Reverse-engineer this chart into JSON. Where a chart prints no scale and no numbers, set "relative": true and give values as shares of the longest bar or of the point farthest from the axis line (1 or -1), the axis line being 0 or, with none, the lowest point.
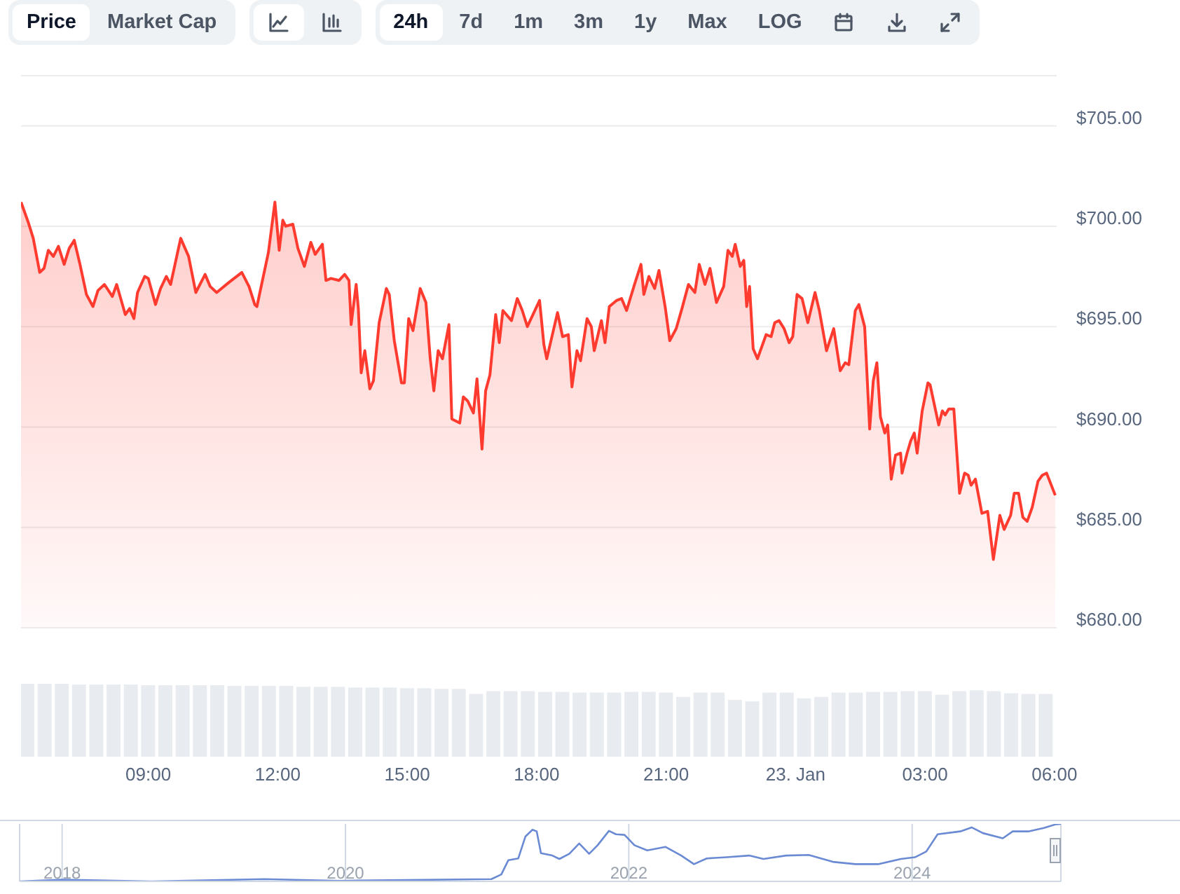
{
  "chart_data": [
    {
      "type": "area",
      "annotations": [
        "Price",
        "Market Cap",
        "24h",
        "7d",
        "1m",
        "3m",
        "1y",
        "Max",
        "LOG"
      ],
      "xlim": [
        "--01-22T06:03",
        "--01-23T06:03"
      ],
      "ylim": [
        680,
        707.5
      ],
      "yticks": [
        {
          "value": 680,
          "label": "$680.00"
        },
        {
          "value": 685,
          "label": "$685.00"
        },
        {
          "value": 690,
          "label": "$690.00"
        },
        {
          "value": 695,
          "label": "$695.00"
        },
        {
          "value": 700,
          "label": "$700.00"
        },
        {
          "value": 705,
          "label": "$705.00"
        }
      ],
      "grid": "y",
      "tick_labels": "y",
      "x": [
        "--01-22T06:03",
        "--01-22T06:13",
        "--01-22T06:20",
        "--01-22T06:29",
        "--01-22T06:35",
        "--01-22T06:41",
        "--01-22T06:48",
        "--01-22T06:55",
        "--01-22T07:03",
        "--01-22T07:10",
        "--01-22T07:17",
        "--01-22T07:25",
        "--01-22T07:34",
        "--01-22T07:43",
        "--01-22T07:50",
        "--01-22T07:59",
        "--01-22T08:10",
        "--01-22T08:16",
        "--01-22T08:28",
        "--01-22T08:34",
        "--01-22T08:40",
        "--01-22T08:45",
        "--01-22T08:55",
        "--01-22T09:00",
        "--01-22T09:10",
        "--01-22T09:17",
        "--01-22T09:25",
        "--01-22T09:31",
        "--01-22T09:45",
        "--01-22T09:56",
        "--01-22T10:06",
        "--01-22T10:19",
        "--01-22T10:26",
        "--01-22T10:35",
        "--01-22T10:52",
        "--01-22T11:10",
        "--01-22T11:20",
        "--01-22T11:28",
        "--01-22T11:31",
        "--01-22T11:47",
        "--01-22T11:56",
        "--01-22T12:02",
        "--01-22T12:07",
        "--01-22T12:11",
        "--01-22T12:21",
        "--01-22T12:28",
        "--01-22T12:37",
        "--01-22T12:46",
        "--01-22T12:52",
        "--01-22T13:02",
        "--01-22T13:07",
        "--01-22T13:14",
        "--01-22T13:25",
        "--01-22T13:33",
        "--01-22T13:39",
        "--01-22T13:42",
        "--01-22T13:49",
        "--01-22T13:52",
        "--01-22T13:56",
        "--01-22T14:01",
        "--01-22T14:08",
        "--01-22T14:13",
        "--01-22T14:21",
        "--01-22T14:31",
        "--01-22T14:35",
        "--01-22T14:42",
        "--01-22T14:52",
        "--01-22T14:56",
        "--01-22T15:02",
        "--01-22T15:08",
        "--01-22T15:18",
        "--01-22T15:26",
        "--01-22T15:32",
        "--01-22T15:37",
        "--01-22T15:43",
        "--01-22T15:49",
        "--01-22T15:58",
        "--01-22T16:02",
        "--01-22T16:13",
        "--01-22T16:18",
        "--01-22T16:24",
        "--01-22T16:32",
        "--01-22T16:37",
        "--01-22T16:44",
        "--01-22T16:49",
        "--01-22T16:55",
        "--01-22T17:03",
        "--01-22T17:08",
        "--01-22T17:13",
        "--01-22T17:25",
        "--01-22T17:33",
        "--01-22T17:40",
        "--01-22T17:47",
        "--01-22T18:04",
        "--01-22T18:10",
        "--01-22T18:14",
        "--01-22T18:29",
        "--01-22T18:36",
        "--01-22T18:44",
        "--01-22T18:49",
        "--01-22T18:56",
        "--01-22T19:01",
        "--01-22T19:10",
        "--01-22T19:16",
        "--01-22T19:20",
        "--01-22T19:30",
        "--01-22T19:35",
        "--01-22T19:41",
        "--01-22T19:51",
        "--01-22T19:58",
        "--01-22T20:05",
        "--01-22T20:16",
        "--01-22T20:25",
        "--01-22T20:29",
        "--01-22T20:36",
        "--01-22T20:44",
        "--01-22T20:50",
        "--01-22T20:59",
        "--01-22T21:05",
        "--01-22T21:14",
        "--01-22T21:22",
        "--01-22T21:31",
        "--01-22T21:40",
        "--01-22T21:46",
        "--01-22T21:54",
        "--01-22T22:01",
        "--01-22T22:10",
        "--01-22T22:20",
        "--01-22T22:26",
        "--01-22T22:32",
        "--01-22T22:36",
        "--01-22T22:43",
        "--01-22T22:48",
        "--01-22T22:52",
        "--01-22T22:56",
        "--01-22T23:01",
        "--01-22T23:07",
        "--01-22T23:19",
        "--01-22T23:26",
        "--01-22T23:31",
        "--01-22T23:37",
        "--01-22T23:44",
        "--01-22T23:51",
        "--01-22T23:56",
        "--01-23T00:02",
        "--01-23T00:09",
        "--01-23T00:17",
        "--01-23T00:27",
        "--01-23T00:33",
        "--01-23T00:43",
        "--01-23T00:53",
        "--01-23T01:02",
        "--01-23T01:09",
        "--01-23T01:14",
        "--01-23T01:23",
        "--01-23T01:28",
        "--01-23T01:36",
        "--01-23T01:43",
        "--01-23T01:48",
        "--01-23T01:53",
        "--01-23T01:58",
        "--01-23T02:04",
        "--01-23T02:08",
        "--01-23T02:13",
        "--01-23T02:19",
        "--01-23T02:26",
        "--01-23T02:28",
        "--01-23T02:35",
        "--01-23T02:40",
        "--01-23T02:45",
        "--01-23T02:49",
        "--01-23T02:56",
        "--01-23T03:04",
        "--01-23T03:07",
        "--01-23T03:19",
        "--01-23T03:24",
        "--01-23T03:28",
        "--01-23T03:33",
        "--01-23T03:40",
        "--01-23T03:48",
        "--01-23T03:55",
        "--01-23T04:00",
        "--01-23T04:04",
        "--01-23T04:10",
        "--01-23T04:19",
        "--01-23T04:27",
        "--01-23T04:35",
        "--01-23T04:44",
        "--01-23T04:50",
        "--01-23T04:59",
        "--01-23T05:04",
        "--01-23T05:10",
        "--01-23T05:16",
        "--01-23T05:22",
        "--01-23T05:29",
        "--01-23T05:37",
        "--01-23T05:43",
        "--01-23T05:49",
        "--01-23T06:01"
      ],
      "series": [
        {
          "color": "#ff3b30",
          "values": [
            701.2,
            700.2,
            699.4,
            697.7,
            697.9,
            698.8,
            698.5,
            699.0,
            698.1,
            698.9,
            699.3,
            698.1,
            696.6,
            696.0,
            696.8,
            697.1,
            696.5,
            697.1,
            695.6,
            695.9,
            695.4,
            696.7,
            697.5,
            697.4,
            696.1,
            696.9,
            697.5,
            697.1,
            699.4,
            698.5,
            696.7,
            697.6,
            697.0,
            696.7,
            697.2,
            697.7,
            697.0,
            696.1,
            696.0,
            698.7,
            701.2,
            698.8,
            700.3,
            700.0,
            700.1,
            698.9,
            698.0,
            699.2,
            698.6,
            699.1,
            697.3,
            697.4,
            697.3,
            697.6,
            697.3,
            695.1,
            697.1,
            695.9,
            692.7,
            693.8,
            691.9,
            692.3,
            695.2,
            696.9,
            696.6,
            694.3,
            692.2,
            692.2,
            695.4,
            694.8,
            696.9,
            696.2,
            693.4,
            691.8,
            693.8,
            693.4,
            695.1,
            690.4,
            690.2,
            691.5,
            691.3,
            690.7,
            692.4,
            688.9,
            691.8,
            692.6,
            695.6,
            694.2,
            695.8,
            695.3,
            696.4,
            695.8,
            695.0,
            696.3,
            694.1,
            693.4,
            695.7,
            694.5,
            694.6,
            692.0,
            693.8,
            693.3,
            695.4,
            695.0,
            693.8,
            695.3,
            694.2,
            696.0,
            696.3,
            696.4,
            695.8,
            697.1,
            698.1,
            696.6,
            697.5,
            696.9,
            697.8,
            695.9,
            694.3,
            694.9,
            695.9,
            697.1,
            696.7,
            698.1,
            697.1,
            697.9,
            696.2,
            697.0,
            698.8,
            698.5,
            699.1,
            698.0,
            698.3,
            696.0,
            697.0,
            693.9,
            693.4,
            694.6,
            694.5,
            695.2,
            695.3,
            694.9,
            694.2,
            694.5,
            696.6,
            696.4,
            695.2,
            696.7,
            695.8,
            693.8,
            694.9,
            692.8,
            693.2,
            693.1,
            695.8,
            696.1,
            695.0,
            689.9,
            692.3,
            693.2,
            690.5,
            689.7,
            690.1,
            687.4,
            688.6,
            688.7,
            687.7,
            688.7,
            689.3,
            689.7,
            688.7,
            690.8,
            692.2,
            692.1,
            690.1,
            690.8,
            690.6,
            690.9,
            690.9,
            686.7,
            687.7,
            687.6,
            687.1,
            687.4,
            685.7,
            685.8,
            683.4,
            685.6,
            684.9,
            685.6,
            686.7,
            686.7,
            685.5,
            685.3,
            686.0,
            687.3,
            687.6,
            687.7,
            686.6
          ]
        }
      ]
    },
    {
      "type": "bar",
      "relative": true,
      "color": "#e8ecf1",
      "tick_labels": "x",
      "xlim": [
        "--01-22T06:03",
        "--01-23T06:03"
      ],
      "xticks": [
        {
          "value": "--01-22T09:00",
          "label": "09:00"
        },
        {
          "value": "--01-22T12:00",
          "label": "12:00"
        },
        {
          "value": "--01-22T15:00",
          "label": "15:00"
        },
        {
          "value": "--01-22T18:00",
          "label": "18:00"
        },
        {
          "value": "--01-22T21:00",
          "label": "21:00"
        },
        {
          "value": "--01-23T00:00",
          "label": "23. Jan"
        },
        {
          "value": "--01-23T03:00",
          "label": "03:00"
        },
        {
          "value": "--01-23T06:00",
          "label": "06:00"
        }
      ],
      "x": [
        "--01-22T06:12",
        "--01-22T06:36",
        "--01-22T07:00",
        "--01-22T07:24",
        "--01-22T07:48",
        "--01-22T08:12",
        "--01-22T08:36",
        "--01-22T09:00",
        "--01-22T09:24",
        "--01-22T09:48",
        "--01-22T10:12",
        "--01-22T10:36",
        "--01-22T11:00",
        "--01-22T11:24",
        "--01-22T11:48",
        "--01-22T12:12",
        "--01-22T12:36",
        "--01-22T13:00",
        "--01-22T13:24",
        "--01-22T13:48",
        "--01-22T14:12",
        "--01-22T14:36",
        "--01-22T15:00",
        "--01-22T15:24",
        "--01-22T15:48",
        "--01-22T16:12",
        "--01-22T16:36",
        "--01-22T17:00",
        "--01-22T17:24",
        "--01-22T17:48",
        "--01-22T18:12",
        "--01-22T18:36",
        "--01-22T19:00",
        "--01-22T19:24",
        "--01-22T19:48",
        "--01-22T20:12",
        "--01-22T20:36",
        "--01-22T21:00",
        "--01-22T21:24",
        "--01-22T21:48",
        "--01-22T22:12",
        "--01-22T22:36",
        "--01-22T23:00",
        "--01-22T23:24",
        "--01-22T23:48",
        "--01-23T00:12",
        "--01-23T00:36",
        "--01-23T01:00",
        "--01-23T01:24",
        "--01-23T01:48",
        "--01-23T02:12",
        "--01-23T02:36",
        "--01-23T03:00",
        "--01-23T03:24",
        "--01-23T03:48",
        "--01-23T04:12",
        "--01-23T04:36",
        "--01-23T05:00",
        "--01-23T05:24",
        "--01-23T05:48"
      ],
      "values": [
        1.0,
        1.0,
        1.0,
        0.99,
        0.99,
        0.99,
        0.99,
        0.98,
        0.98,
        0.98,
        0.98,
        0.98,
        0.97,
        0.97,
        0.97,
        0.97,
        0.96,
        0.96,
        0.96,
        0.95,
        0.95,
        0.95,
        0.94,
        0.94,
        0.93,
        0.93,
        0.86,
        0.9,
        0.9,
        0.9,
        0.89,
        0.89,
        0.88,
        0.88,
        0.88,
        0.89,
        0.89,
        0.88,
        0.82,
        0.88,
        0.88,
        0.78,
        0.76,
        0.88,
        0.88,
        0.8,
        0.82,
        0.88,
        0.88,
        0.89,
        0.89,
        0.9,
        0.9,
        0.85,
        0.9,
        0.91,
        0.9,
        0.87,
        0.86,
        0.86
      ]
    },
    {
      "type": "line",
      "relative": true,
      "color": "#6a8ad4",
      "grid": "x",
      "xlim": [
        2017.7,
        2025.05
      ],
      "xticks": [
        2018,
        2020,
        2022,
        2024
      ],
      "tick_labels": "x",
      "x": [
        2017.7,
        2018.0,
        2018.63,
        2019.43,
        2019.96,
        2021.03,
        2021.1,
        2021.15,
        2021.22,
        2021.27,
        2021.32,
        2021.35,
        2021.38,
        2021.46,
        2021.51,
        2021.58,
        2021.65,
        2021.72,
        2021.78,
        2021.86,
        2021.91,
        2021.97,
        2022.04,
        2022.13,
        2022.26,
        2022.37,
        2022.46,
        2022.55,
        2022.69,
        2022.85,
        2022.95,
        2023.11,
        2023.27,
        2023.44,
        2023.6,
        2023.76,
        2023.92,
        2024.02,
        2024.1,
        2024.18,
        2024.34,
        2024.42,
        2024.5,
        2024.64,
        2024.71,
        2024.82,
        2024.93,
        2025.01,
        2025.05
      ],
      "values": [
        0,
        0.03,
        0,
        0.04,
        0.01,
        0.04,
        0.12,
        0.37,
        0.4,
        0.78,
        0.9,
        0.87,
        0.49,
        0.45,
        0.39,
        0.48,
        0.66,
        0.48,
        0.63,
        0.88,
        0.82,
        0.81,
        0.63,
        0.54,
        0.6,
        0.45,
        0.3,
        0.4,
        0.42,
        0.45,
        0.39,
        0.45,
        0.46,
        0.34,
        0.3,
        0.3,
        0.39,
        0.42,
        0.52,
        0.82,
        0.87,
        0.94,
        0.84,
        0.75,
        0.87,
        0.87,
        0.93,
        0.99,
        1.0
      ]
    }
  ]
}
